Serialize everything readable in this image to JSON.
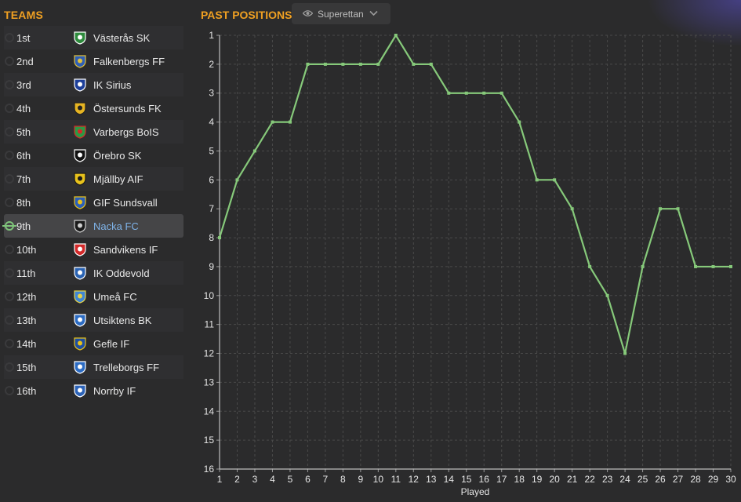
{
  "teams_panel": {
    "title": "TEAMS",
    "teams": [
      {
        "pos": "1st",
        "name": "Västerås SK",
        "badge": "#2e8b3d",
        "badge2": "#ffffff"
      },
      {
        "pos": "2nd",
        "name": "Falkenbergs FF",
        "badge": "#2f5fb5",
        "badge2": "#e2c13a"
      },
      {
        "pos": "3rd",
        "name": "IK Sirius",
        "badge": "#1d3f9a",
        "badge2": "#ffffff"
      },
      {
        "pos": "4th",
        "name": "Östersunds FK",
        "badge": "#e6b422",
        "badge2": "#222222"
      },
      {
        "pos": "5th",
        "name": "Varbergs BoIS",
        "badge": "#2b9a45",
        "badge2": "#d82828"
      },
      {
        "pos": "6th",
        "name": "Örebro SK",
        "badge": "#111111",
        "badge2": "#ffffff"
      },
      {
        "pos": "7th",
        "name": "Mjällby AIF",
        "badge": "#e8c21c",
        "badge2": "#1a1a1a"
      },
      {
        "pos": "8th",
        "name": "GIF Sundsvall",
        "badge": "#2b5fb8",
        "badge2": "#e8c21c"
      },
      {
        "pos": "9th",
        "name": "Nacka FC",
        "badge": "#1a1a1a",
        "badge2": "#cfcfcf"
      },
      {
        "pos": "10th",
        "name": "Sandvikens IF",
        "badge": "#d42a2a",
        "badge2": "#ffffff"
      },
      {
        "pos": "11th",
        "name": "IK Oddevold",
        "badge": "#2a63b3",
        "badge2": "#ffffff"
      },
      {
        "pos": "12th",
        "name": "Umeå FC",
        "badge": "#3f86d4",
        "badge2": "#e6d34a"
      },
      {
        "pos": "13th",
        "name": "Utsiktens BK",
        "badge": "#2c6cc4",
        "badge2": "#ffffff"
      },
      {
        "pos": "14th",
        "name": "Gefle IF",
        "badge": "#1f4fa0",
        "badge2": "#e8c21c"
      },
      {
        "pos": "15th",
        "name": "Trelleborgs FF",
        "badge": "#2c6cc4",
        "badge2": "#ffffff"
      },
      {
        "pos": "16th",
        "name": "Norrby IF",
        "badge": "#2c63b8",
        "badge2": "#ffffff"
      }
    ],
    "selected_index": 8
  },
  "chart_panel": {
    "title": "PAST POSITIONS",
    "filter": {
      "label": "Superettan",
      "icon": "eye-icon",
      "caret": "chevron-down-icon"
    }
  },
  "colors": {
    "accent": "#f0a022",
    "line": "#86c97a",
    "selected_text": "#7fb3e8",
    "grid": "#4a4a4a"
  },
  "chart_data": {
    "type": "line",
    "xlabel": "Played",
    "ylabel": "",
    "x": [
      1,
      2,
      3,
      4,
      5,
      6,
      7,
      8,
      9,
      10,
      11,
      12,
      13,
      14,
      15,
      16,
      17,
      18,
      19,
      20,
      21,
      22,
      23,
      24,
      25,
      26,
      27,
      28,
      29,
      30
    ],
    "series": [
      {
        "values": [
          8,
          6,
          5,
          4,
          4,
          2,
          2,
          2,
          2,
          2,
          1,
          2,
          2,
          3,
          3,
          3,
          3,
          4,
          6,
          6,
          7,
          9,
          10,
          12,
          9,
          7,
          7,
          9,
          9,
          9
        ]
      }
    ],
    "xlim": [
      1,
      30
    ],
    "ylim": [
      1,
      16
    ],
    "y_inverted": true,
    "y_ticks": [
      1,
      2,
      3,
      4,
      5,
      6,
      7,
      8,
      9,
      10,
      11,
      12,
      13,
      14,
      15,
      16
    ],
    "grid": true,
    "legend": "none"
  }
}
